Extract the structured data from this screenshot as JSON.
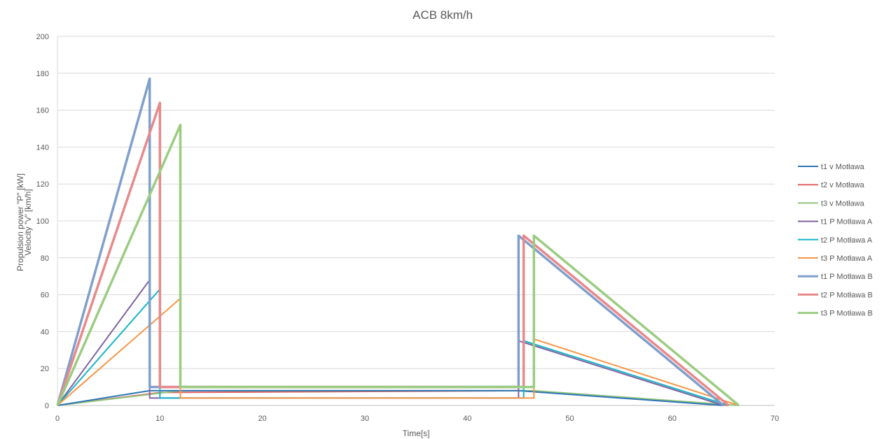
{
  "chart_data": {
    "type": "line",
    "title": "ACB 8km/h",
    "xlabel": "Time[s]",
    "ylabel": [
      "Velocity \"v\" [km/h]",
      "Propulsion power \"P\" [kW]"
    ],
    "xlim": [
      0,
      70
    ],
    "ylim": [
      0,
      200
    ],
    "xticks": [
      0,
      10,
      20,
      30,
      40,
      50,
      60,
      70
    ],
    "yticks": [
      0,
      20,
      40,
      60,
      80,
      100,
      120,
      140,
      160,
      180,
      200
    ],
    "grid": "horizontal",
    "legend_position": "right",
    "series": [
      {
        "name": "t1 v Motława",
        "color": "#2e75b6",
        "points": [
          [
            0,
            0
          ],
          [
            9,
            8
          ],
          [
            45,
            8
          ],
          [
            65,
            0
          ]
        ]
      },
      {
        "name": "t2 v Motława",
        "color": "#e06666",
        "points": [
          [
            0,
            0
          ],
          [
            10,
            7
          ],
          [
            45.5,
            8
          ],
          [
            65.5,
            0
          ]
        ]
      },
      {
        "name": "t3 v Motława",
        "color": "#93c47d",
        "points": [
          [
            0,
            0
          ],
          [
            12,
            8
          ],
          [
            46.5,
            8
          ],
          [
            66.5,
            0
          ]
        ]
      },
      {
        "name": "t1 P Motława A",
        "color": "#8064a2",
        "points": [
          [
            0,
            0
          ],
          [
            9,
            68
          ],
          [
            9,
            4
          ],
          [
            45,
            4
          ],
          [
            45,
            35
          ],
          [
            65,
            0
          ]
        ]
      },
      {
        "name": "t2 P Motława A",
        "color": "#17b4c7",
        "points": [
          [
            0,
            0
          ],
          [
            10,
            63
          ],
          [
            10,
            4
          ],
          [
            45.5,
            4
          ],
          [
            45.5,
            35
          ],
          [
            65.5,
            0
          ]
        ]
      },
      {
        "name": "t3 P Motława A",
        "color": "#f79646",
        "points": [
          [
            0,
            0
          ],
          [
            12,
            58
          ],
          [
            12,
            4
          ],
          [
            46.5,
            4
          ],
          [
            46.5,
            36
          ],
          [
            66.5,
            0
          ]
        ]
      },
      {
        "name": "t1 P Motława B",
        "color": "#7f9fcd",
        "points": [
          [
            0,
            0
          ],
          [
            9,
            177
          ],
          [
            9,
            10
          ],
          [
            45,
            10
          ],
          [
            45,
            92
          ],
          [
            65,
            0
          ]
        ]
      },
      {
        "name": "t2 P Motława B",
        "color": "#e8898a",
        "points": [
          [
            0,
            0
          ],
          [
            10,
            164
          ],
          [
            10,
            10
          ],
          [
            45.5,
            10
          ],
          [
            45.5,
            92
          ],
          [
            65.5,
            0
          ]
        ]
      },
      {
        "name": "t3 P Motława B",
        "color": "#9bcc82",
        "points": [
          [
            0,
            0
          ],
          [
            12,
            152
          ],
          [
            12,
            10
          ],
          [
            46.5,
            10
          ],
          [
            46.5,
            92
          ],
          [
            66.5,
            0
          ]
        ]
      }
    ]
  }
}
